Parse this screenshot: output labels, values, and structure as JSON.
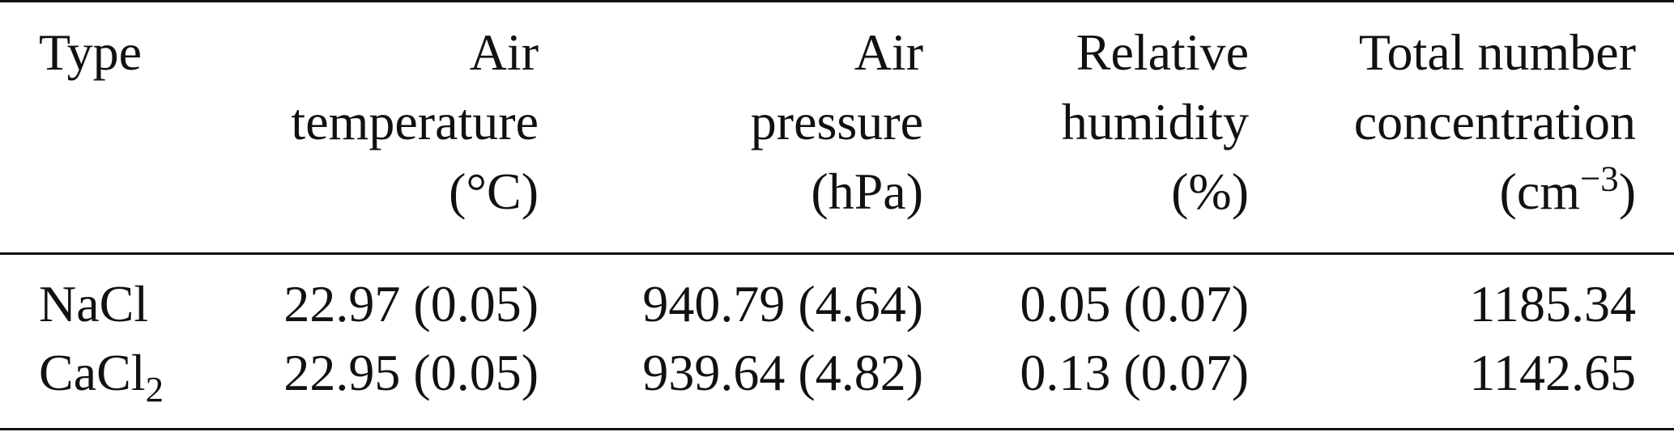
{
  "table": {
    "headers": [
      {
        "key": "type",
        "lines": [
          "Type"
        ]
      },
      {
        "key": "air_temperature",
        "lines": [
          "Air",
          "temperature",
          "(°C)"
        ]
      },
      {
        "key": "air_pressure",
        "lines": [
          "Air",
          "pressure",
          "(hPa)"
        ]
      },
      {
        "key": "relative_humidity",
        "lines": [
          "Relative",
          "humidity",
          "(%)"
        ]
      },
      {
        "key": "total_number_concentration",
        "lines": [
          "Total number",
          "concentration",
          "(cm",
          "−3",
          ")"
        ]
      }
    ],
    "rows": [
      {
        "type_base": "NaCl",
        "type_subscript": "",
        "air_temperature": "22.97 (0.05)",
        "air_pressure": "940.79 (4.64)",
        "relative_humidity": "0.05 (0.07)",
        "total_number_concentration": "1185.34"
      },
      {
        "type_base": "CaCl",
        "type_subscript": "2",
        "air_temperature": "22.95 (0.05)",
        "air_pressure": "939.64 (4.82)",
        "relative_humidity": "0.13 (0.07)",
        "total_number_concentration": "1142.65"
      }
    ]
  }
}
